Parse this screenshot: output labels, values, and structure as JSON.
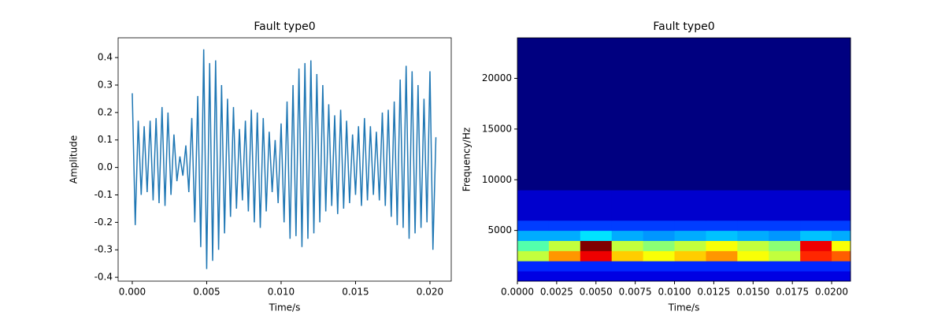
{
  "chart_data": [
    {
      "type": "line",
      "title": "Fault type0",
      "xlabel": "Time/s",
      "ylabel": "Amplitude",
      "color": "#1f77b4",
      "x": [
        0,
        0.0002,
        0.0004,
        0.0006,
        0.0008,
        0.001,
        0.0012,
        0.0014,
        0.0016,
        0.0018,
        0.002,
        0.0022,
        0.0024,
        0.0026,
        0.0028,
        0.003,
        0.0032,
        0.0034,
        0.0036,
        0.0038,
        0.004,
        0.0042,
        0.0044,
        0.0046,
        0.0048,
        0.005,
        0.0052,
        0.0054,
        0.0056,
        0.0058,
        0.006,
        0.0062,
        0.0064,
        0.0066,
        0.0068,
        0.007,
        0.0072,
        0.0074,
        0.0076,
        0.0078,
        0.008,
        0.0082,
        0.0084,
        0.0086,
        0.0088,
        0.009,
        0.0092,
        0.0094,
        0.0096,
        0.0098,
        0.01,
        0.0102,
        0.0104,
        0.0106,
        0.0108,
        0.011,
        0.0112,
        0.0114,
        0.0116,
        0.0118,
        0.012,
        0.0122,
        0.0124,
        0.0126,
        0.0128,
        0.013,
        0.0132,
        0.0134,
        0.0136,
        0.0138,
        0.014,
        0.0142,
        0.0144,
        0.0146,
        0.0148,
        0.015,
        0.0152,
        0.0154,
        0.0156,
        0.0158,
        0.016,
        0.0162,
        0.0164,
        0.0166,
        0.0168,
        0.017,
        0.0172,
        0.0174,
        0.0176,
        0.0178,
        0.018,
        0.0182,
        0.0184,
        0.0186,
        0.0188,
        0.019,
        0.0192,
        0.0194,
        0.0196,
        0.0198,
        0.02,
        0.0202,
        0.0204
      ],
      "values": [
        0.27,
        -0.21,
        0.17,
        -0.1,
        0.15,
        -0.09,
        0.17,
        -0.12,
        0.18,
        -0.13,
        0.22,
        -0.14,
        0.2,
        -0.1,
        0.12,
        -0.05,
        0.04,
        -0.03,
        0.08,
        -0.09,
        0.18,
        -0.2,
        0.26,
        -0.29,
        0.43,
        -0.37,
        0.38,
        -0.34,
        0.39,
        -0.3,
        0.3,
        -0.24,
        0.25,
        -0.18,
        0.22,
        -0.15,
        0.14,
        -0.12,
        0.17,
        -0.16,
        0.21,
        -0.2,
        0.2,
        -0.22,
        0.18,
        -0.16,
        0.13,
        -0.09,
        0.1,
        -0.13,
        0.16,
        -0.2,
        0.24,
        -0.26,
        0.3,
        -0.25,
        0.36,
        -0.29,
        0.38,
        -0.26,
        0.39,
        -0.24,
        0.34,
        -0.2,
        0.3,
        -0.16,
        0.23,
        -0.14,
        0.19,
        -0.17,
        0.21,
        -0.15,
        0.17,
        -0.13,
        0.12,
        -0.1,
        0.15,
        -0.14,
        0.18,
        -0.12,
        0.15,
        -0.1,
        0.13,
        -0.12,
        0.2,
        -0.14,
        0.21,
        -0.18,
        0.24,
        -0.21,
        0.32,
        -0.22,
        0.37,
        -0.26,
        0.35,
        -0.24,
        0.3,
        -0.22,
        0.25,
        -0.2,
        0.35,
        -0.3,
        0.11
      ],
      "xlim": [
        -0.00095,
        0.02143
      ],
      "ylim": [
        -0.414,
        0.472
      ],
      "xticks": [
        {
          "value": 0,
          "label": "0.000"
        },
        {
          "value": 0.005,
          "label": "0.005"
        },
        {
          "value": 0.01,
          "label": "0.010"
        },
        {
          "value": 0.015,
          "label": "0.015"
        },
        {
          "value": 0.02,
          "label": "0.020"
        }
      ],
      "yticks": [
        -0.4,
        -0.3,
        -0.2,
        -0.1,
        {
          "value": 0,
          "label": "0.0"
        },
        0.1,
        0.2,
        0.3,
        0.4
      ]
    },
    {
      "type": "heatmap",
      "title": "Fault type0",
      "xlabel": "Time/s",
      "ylabel": "Frequency/Hz",
      "colormap": "jet",
      "xbins": [
        0,
        0.002,
        0.004,
        0.006,
        0.008,
        0.01,
        0.012,
        0.014,
        0.016,
        0.018,
        0.02,
        0.0212
      ],
      "ybins": [
        0,
        1000,
        2000,
        3000,
        4000,
        5000,
        6000,
        7000,
        8000,
        9000,
        10000,
        11000,
        12000,
        13000,
        14000,
        15000,
        16000,
        17000,
        18000,
        19000,
        20000,
        21000,
        22000,
        23000,
        24000
      ],
      "z": [
        [
          0.12,
          0.12,
          0.12,
          0.12,
          0.12,
          0.12,
          0.12,
          0.12,
          0.12,
          0.12,
          0.12
        ],
        [
          0.18,
          0.18,
          0.18,
          0.18,
          0.18,
          0.18,
          0.18,
          0.18,
          0.18,
          0.18,
          0.18
        ],
        [
          0.55,
          0.7,
          0.85,
          0.65,
          0.6,
          0.65,
          0.7,
          0.6,
          0.55,
          0.8,
          0.75
        ],
        [
          0.45,
          0.55,
          0.95,
          0.55,
          0.5,
          0.55,
          0.6,
          0.55,
          0.5,
          0.85,
          0.6
        ],
        [
          0.3,
          0.3,
          0.35,
          0.3,
          0.28,
          0.3,
          0.32,
          0.3,
          0.28,
          0.32,
          0.3
        ],
        [
          0.2,
          0.2,
          0.2,
          0.2,
          0.2,
          0.2,
          0.2,
          0.2,
          0.2,
          0.2,
          0.2
        ],
        [
          0.1,
          0.1,
          0.1,
          0.1,
          0.1,
          0.1,
          0.1,
          0.1,
          0.1,
          0.1,
          0.1
        ],
        [
          0.1,
          0.1,
          0.1,
          0.1,
          0.1,
          0.1,
          0.1,
          0.1,
          0.1,
          0.1,
          0.1
        ],
        [
          0.1,
          0.1,
          0.1,
          0.1,
          0.1,
          0.1,
          0.1,
          0.1,
          0.1,
          0.1,
          0.1
        ],
        [
          0.03,
          0.03,
          0.03,
          0.03,
          0.03,
          0.03,
          0.03,
          0.03,
          0.03,
          0.03,
          0.03
        ],
        [
          0.03,
          0.03,
          0.03,
          0.03,
          0.03,
          0.03,
          0.03,
          0.03,
          0.03,
          0.03,
          0.03
        ],
        [
          0.03,
          0.03,
          0.03,
          0.03,
          0.03,
          0.03,
          0.03,
          0.03,
          0.03,
          0.03,
          0.03
        ],
        [
          0.03,
          0.03,
          0.03,
          0.03,
          0.03,
          0.03,
          0.03,
          0.03,
          0.03,
          0.03,
          0.03
        ],
        [
          0.03,
          0.03,
          0.03,
          0.03,
          0.03,
          0.03,
          0.03,
          0.03,
          0.03,
          0.03,
          0.03
        ],
        [
          0.03,
          0.03,
          0.03,
          0.03,
          0.03,
          0.03,
          0.03,
          0.03,
          0.03,
          0.03,
          0.03
        ],
        [
          0.03,
          0.03,
          0.03,
          0.03,
          0.03,
          0.03,
          0.03,
          0.03,
          0.03,
          0.03,
          0.03
        ],
        [
          0.03,
          0.03,
          0.03,
          0.03,
          0.03,
          0.03,
          0.03,
          0.03,
          0.03,
          0.03,
          0.03
        ],
        [
          0.03,
          0.03,
          0.03,
          0.03,
          0.03,
          0.03,
          0.03,
          0.03,
          0.03,
          0.03,
          0.03
        ],
        [
          0.03,
          0.03,
          0.03,
          0.03,
          0.03,
          0.03,
          0.03,
          0.03,
          0.03,
          0.03,
          0.03
        ],
        [
          0.03,
          0.03,
          0.03,
          0.03,
          0.03,
          0.03,
          0.03,
          0.03,
          0.03,
          0.03,
          0.03
        ],
        [
          0.03,
          0.03,
          0.03,
          0.03,
          0.03,
          0.03,
          0.03,
          0.03,
          0.03,
          0.03,
          0.03
        ],
        [
          0.03,
          0.03,
          0.03,
          0.03,
          0.03,
          0.03,
          0.03,
          0.03,
          0.03,
          0.03,
          0.03
        ],
        [
          0.03,
          0.03,
          0.03,
          0.03,
          0.03,
          0.03,
          0.03,
          0.03,
          0.03,
          0.03,
          0.03
        ],
        [
          0.03,
          0.03,
          0.03,
          0.03,
          0.03,
          0.03,
          0.03,
          0.03,
          0.03,
          0.03,
          0.03
        ]
      ],
      "xlim": [
        0,
        0.0212
      ],
      "ylim": [
        0,
        24000
      ],
      "xticks": [
        {
          "value": 0,
          "label": "0.0000"
        },
        {
          "value": 0.0025,
          "label": "0.0025"
        },
        {
          "value": 0.005,
          "label": "0.0050"
        },
        {
          "value": 0.0075,
          "label": "0.0075"
        },
        {
          "value": 0.01,
          "label": "0.0100"
        },
        {
          "value": 0.0125,
          "label": "0.0125"
        },
        {
          "value": 0.015,
          "label": "0.0150"
        },
        {
          "value": 0.0175,
          "label": "0.0175"
        },
        {
          "value": 0.02,
          "label": "0.0200"
        }
      ],
      "yticks": [
        5000,
        10000,
        15000,
        20000
      ]
    }
  ]
}
